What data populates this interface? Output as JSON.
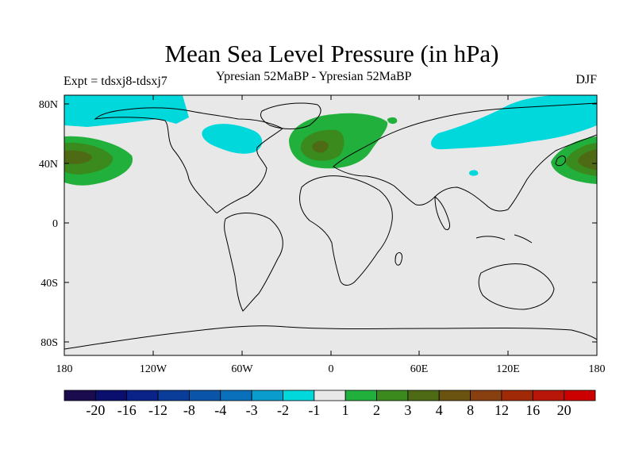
{
  "header": {
    "title": "Mean Sea Level Pressure (in hPa)",
    "left_subtitle": "Expt = tdsxj8-tdsxj7",
    "center_subtitle": "Ypresian  52MaBP - Ypresian  52MaBP",
    "right_subtitle": "DJF"
  },
  "axes": {
    "lat_labels": [
      "80N",
      "40N",
      "0",
      "40S",
      "80S"
    ],
    "lon_labels": [
      "180",
      "120W",
      "60W",
      "0",
      "60E",
      "120E",
      "180"
    ]
  },
  "colorbar": {
    "labels": [
      "-20",
      "-16",
      "-12",
      "-8",
      "-4",
      "-3",
      "-2",
      "-1",
      "1",
      "2",
      "3",
      "4",
      "8",
      "12",
      "16",
      "20"
    ],
    "colors": [
      "#1a0a4e",
      "#0a0f6e",
      "#0a2388",
      "#0a3d9a",
      "#0a55aa",
      "#0a70bb",
      "#0a9ccc",
      "#00d8dc",
      "#e8e8e8",
      "#22b03c",
      "#3a8a1e",
      "#4e6a14",
      "#6a5210",
      "#884010",
      "#a02a08",
      "#b81608",
      "#cc0000"
    ]
  },
  "colors": {
    "background_field": "#e8e8e8",
    "negative_small": "#00d8dc",
    "positive_small": "#22b03c",
    "positive_medium": "#3a8a1e",
    "positive_large": "#4e6a14"
  }
}
